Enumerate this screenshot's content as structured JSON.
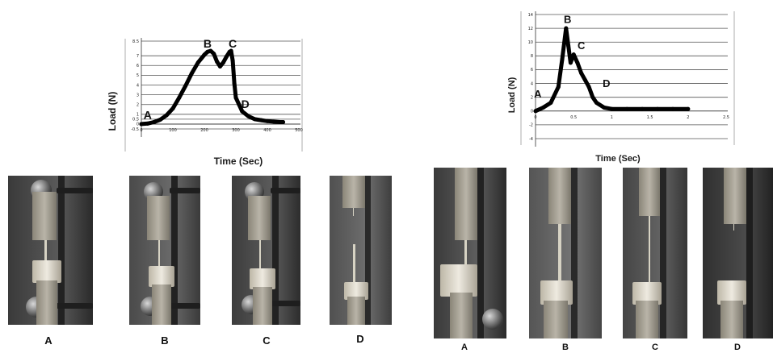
{
  "chart_data": [
    {
      "type": "line",
      "title": "",
      "xlabel": "Time (Sec)",
      "ylabel": "Load (N)",
      "xlim": [
        0,
        500
      ],
      "ylim": [
        -0.5,
        8.5
      ],
      "x_ticks": [
        "0",
        "100",
        "200",
        "300",
        "400",
        "500"
      ],
      "y_ticks": [
        "-0.5",
        "0",
        "0.5",
        "1",
        "2",
        "3",
        "4",
        "5",
        "6",
        "7",
        "8.5"
      ],
      "series": [
        {
          "x": [
            0,
            20,
            40,
            60,
            80,
            100,
            120,
            140,
            160,
            180,
            200,
            210,
            220,
            230,
            240,
            250,
            260,
            270,
            280,
            285,
            290,
            295,
            300,
            310,
            320,
            340,
            360,
            380,
            400,
            420,
            440,
            450
          ],
          "values": [
            0,
            0.05,
            0.2,
            0.45,
            0.9,
            1.6,
            2.7,
            3.9,
            5.2,
            6.3,
            7.1,
            7.4,
            7.5,
            7.2,
            6.4,
            5.9,
            6.3,
            6.9,
            7.4,
            7.5,
            6.5,
            4.2,
            2.7,
            2.0,
            1.3,
            0.8,
            0.5,
            0.4,
            0.3,
            0.25,
            0.2,
            0.2
          ]
        }
      ],
      "annotations": [
        {
          "label": "A",
          "x": 20,
          "y": 0.2
        },
        {
          "label": "B",
          "x": 210,
          "y": 7.5
        },
        {
          "label": "C",
          "x": 290,
          "y": 7.5
        },
        {
          "label": "D",
          "x": 330,
          "y": 1.3
        }
      ],
      "grid": true
    },
    {
      "type": "line",
      "title": "",
      "xlabel": "Time (Sec)",
      "ylabel": "Load (N)",
      "xlim": [
        0,
        2.5
      ],
      "ylim": [
        -4,
        14
      ],
      "x_ticks": [
        "0",
        "0.5",
        "1",
        "1.5",
        "2",
        "2.5"
      ],
      "y_ticks": [
        "-4",
        "-2",
        "0",
        "2",
        "4",
        "6",
        "8",
        "10",
        "12",
        "14"
      ],
      "series": [
        {
          "x": [
            0,
            0.1,
            0.2,
            0.3,
            0.35,
            0.4,
            0.43,
            0.46,
            0.5,
            0.55,
            0.6,
            0.65,
            0.7,
            0.75,
            0.8,
            0.9,
            1.0,
            1.2,
            1.4,
            1.6,
            1.8,
            2.0
          ],
          "values": [
            0,
            0.5,
            1.2,
            3.5,
            7.5,
            12,
            9.5,
            7.0,
            8.2,
            7.0,
            5.5,
            4.5,
            3.5,
            2.0,
            1.2,
            0.5,
            0.3,
            0.3,
            0.3,
            0.3,
            0.3,
            0.3
          ]
        }
      ],
      "annotations": [
        {
          "label": "A",
          "x": 0.03,
          "y": 1.5
        },
        {
          "label": "B",
          "x": 0.42,
          "y": 12.3
        },
        {
          "label": "C",
          "x": 0.6,
          "y": 8.5
        },
        {
          "label": "D",
          "x": 0.93,
          "y": 3.0
        }
      ],
      "grid": true
    }
  ],
  "photos": {
    "left": [
      "A",
      "B",
      "C",
      "D"
    ],
    "right": [
      "A",
      "B",
      "C",
      "D"
    ]
  }
}
